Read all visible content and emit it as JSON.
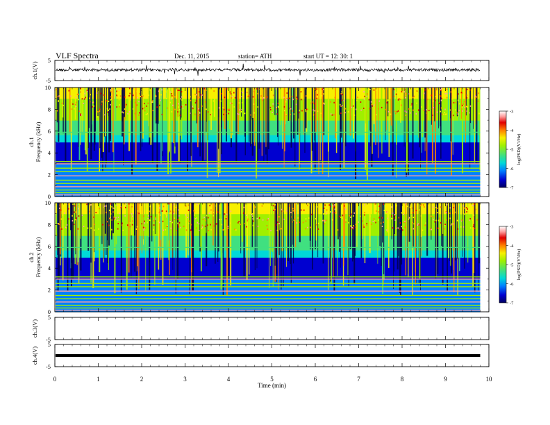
{
  "header": {
    "title": "VLF  Spectra",
    "date": "Dec. 11, 2015",
    "station": "station= ATH",
    "start": "start  UT  =    12: 30: 1"
  },
  "chart_data": [
    {
      "type": "line",
      "panel": "ch1-waveform",
      "ylabel": "ch.1(V)",
      "ylim": [
        -5,
        5
      ],
      "yticks": [
        "5",
        "-5"
      ],
      "description_level": 0.3,
      "x_range": [
        0,
        9.8
      ]
    },
    {
      "type": "heatmap",
      "panel": "ch1-spectrogram",
      "ylabel": [
        "ch.1",
        "Frequency  (kHz)"
      ],
      "ylim": [
        0,
        10
      ],
      "yticks": [
        "0",
        "2",
        "4",
        "6",
        "8",
        "10"
      ],
      "x_range": [
        0,
        9.8
      ],
      "colorbar": {
        "label": "log(PSD)(V²/Hz)",
        "range": [
          -7,
          -3
        ],
        "ticks": [
          "-3",
          "-4",
          "-5",
          "-6",
          "-7"
        ]
      }
    },
    {
      "type": "heatmap",
      "panel": "ch2-spectrogram",
      "ylabel": [
        "ch.2",
        "Frequency  (kHz)"
      ],
      "ylim": [
        0,
        10
      ],
      "yticks": [
        "0",
        "2",
        "4",
        "6",
        "8",
        "10"
      ],
      "x_range": [
        0,
        9.8
      ],
      "colorbar": {
        "label": "log(PSD)(V²/Hz)",
        "range": [
          -7,
          -3
        ],
        "ticks": [
          "-3",
          "-4",
          "-5",
          "-6",
          "-7"
        ]
      }
    },
    {
      "type": "line",
      "panel": "ch3-waveform",
      "ylabel": "ch.3(V)",
      "ylim": [
        -5,
        5
      ],
      "yticks": [
        "5",
        "-5"
      ],
      "level": null
    },
    {
      "type": "line",
      "panel": "ch4-waveform",
      "ylabel": "ch.4(V)",
      "ylim": [
        -5,
        5
      ],
      "yticks": [
        "5",
        "-5"
      ],
      "level": 0
    }
  ],
  "x_axis": {
    "label": "Time  (min)",
    "range": [
      0,
      10
    ],
    "ticks": [
      "0",
      "1",
      "2",
      "3",
      "4",
      "5",
      "6",
      "7",
      "8",
      "9",
      "10"
    ]
  },
  "colors": {
    "scale": [
      "#000060",
      "#0000d0",
      "#0080ff",
      "#00d8d8",
      "#40e080",
      "#a0f000",
      "#f8f000",
      "#ff8000",
      "#e00000",
      "#ffa0a0",
      "#ffffff"
    ]
  }
}
